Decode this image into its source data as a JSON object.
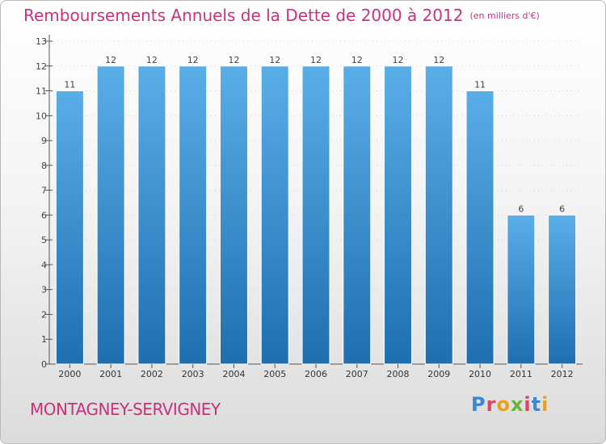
{
  "title": "Remboursements Annuels de la Dette de 2000 à 2012",
  "subtitle": "(en milliers d'€)",
  "commune": "MONTAGNEY-SERVIGNEY",
  "brand": "Proxiti",
  "colors": {
    "bar_light": "#5aaee8",
    "bar_dark": "#1f6fb0",
    "title": "#c8327a"
  },
  "chart_data": {
    "type": "bar",
    "title": "Remboursements Annuels de la Dette de 2000 à 2012",
    "ylabel": "en milliers d'€",
    "categories": [
      "2000",
      "2001",
      "2002",
      "2003",
      "2004",
      "2005",
      "2006",
      "2007",
      "2008",
      "2009",
      "2010",
      "2011",
      "2012"
    ],
    "values": [
      11,
      12,
      12,
      12,
      12,
      12,
      12,
      12,
      12,
      12,
      11,
      6,
      6
    ],
    "ylim": [
      0,
      13
    ],
    "yticks": [
      0,
      1,
      2,
      3,
      4,
      5,
      6,
      7,
      8,
      9,
      10,
      11,
      12,
      13
    ],
    "grid": true
  }
}
